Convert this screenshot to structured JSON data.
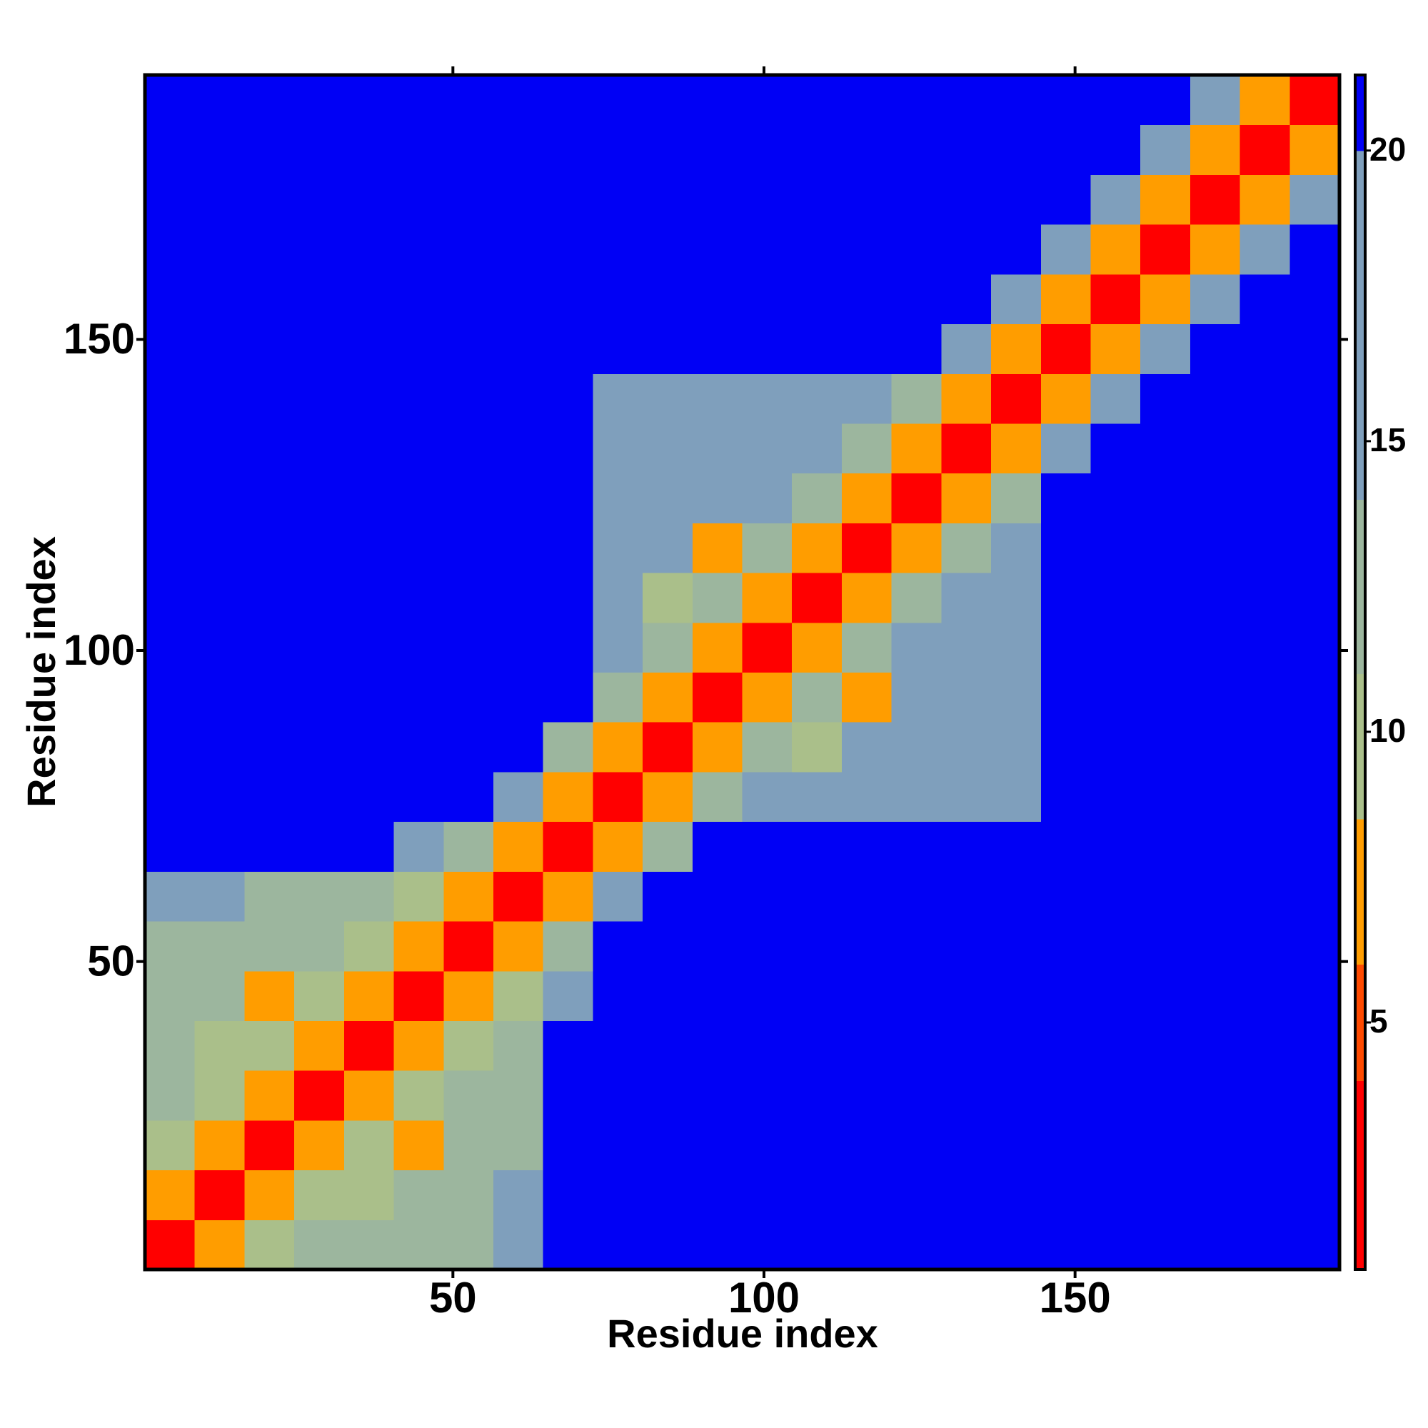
{
  "chart_data": {
    "type": "heatmap",
    "x_label": "Residue index",
    "y_label": "Residue index",
    "x": [
      4.5,
      12.5,
      20.5,
      28.5,
      36.5,
      44.5,
      52.5,
      60.5,
      68.5,
      76.5,
      84.5,
      92.5,
      100.5,
      108.5,
      116.5,
      124.5,
      132.5,
      140.5,
      148.5,
      156.5,
      164.5,
      172.5,
      180.5,
      188.5
    ],
    "y": [
      4.5,
      12.5,
      20.5,
      28.5,
      36.5,
      44.5,
      52.5,
      60.5,
      68.5,
      76.5,
      84.5,
      92.5,
      100.5,
      108.5,
      116.5,
      124.5,
      132.5,
      140.5,
      148.5,
      156.5,
      164.5,
      172.5,
      180.5,
      188.5
    ],
    "xlim": [
      0.5,
      192.5
    ],
    "ylim": [
      0.5,
      192.5
    ],
    "xticks": [
      50,
      100,
      150
    ],
    "yticks": [
      50,
      100,
      150
    ],
    "zlim": [
      0.75,
      21.3
    ],
    "zticks": [
      5,
      10,
      15,
      20
    ],
    "color_levels": [
      0.75,
      4,
      6,
      8.5,
      11,
      14,
      20,
      21.3
    ],
    "colors": [
      "#ff0000",
      "#ff4a00",
      "#ff9d00",
      "#aabf8a",
      "#9cb69e",
      "#7f9fbc",
      "#0000f5"
    ],
    "z": [
      [
        3,
        6,
        10,
        13,
        13,
        13,
        13,
        16,
        24,
        24,
        24,
        24,
        24,
        24,
        24,
        24,
        24,
        24,
        24,
        24,
        24,
        24,
        24,
        24
      ],
      [
        6,
        3,
        6,
        10,
        9,
        13,
        13,
        14,
        24,
        24,
        24,
        24,
        24,
        24,
        24,
        24,
        24,
        24,
        24,
        24,
        24,
        24,
        24,
        24
      ],
      [
        10,
        6,
        3,
        6,
        10,
        8,
        13,
        13,
        24,
        24,
        24,
        24,
        24,
        24,
        24,
        24,
        24,
        24,
        24,
        24,
        24,
        24,
        24,
        24
      ],
      [
        13,
        10,
        6,
        3,
        6,
        10,
        13,
        13,
        24,
        24,
        24,
        24,
        24,
        24,
        24,
        24,
        24,
        24,
        24,
        24,
        24,
        24,
        24,
        24
      ],
      [
        13,
        9,
        10,
        6,
        3,
        6,
        10,
        13,
        24,
        24,
        24,
        24,
        24,
        24,
        24,
        24,
        24,
        24,
        24,
        24,
        24,
        24,
        24,
        24
      ],
      [
        13,
        13,
        8,
        10,
        6,
        3,
        6,
        10,
        18,
        24,
        24,
        24,
        24,
        24,
        24,
        24,
        24,
        24,
        24,
        24,
        24,
        24,
        24,
        24
      ],
      [
        13,
        13,
        13,
        13,
        10,
        6,
        3,
        6,
        12,
        24,
        24,
        24,
        24,
        24,
        24,
        24,
        24,
        24,
        24,
        24,
        24,
        24,
        24,
        24
      ],
      [
        16,
        14,
        13,
        13,
        13,
        10,
        6,
        3,
        6,
        17,
        24,
        24,
        24,
        24,
        24,
        24,
        24,
        24,
        24,
        24,
        24,
        24,
        24,
        24
      ],
      [
        24,
        24,
        24,
        24,
        24,
        18,
        12,
        6,
        3,
        7,
        13,
        24,
        24,
        24,
        24,
        24,
        24,
        24,
        24,
        24,
        24,
        24,
        24,
        24
      ],
      [
        24,
        24,
        24,
        24,
        24,
        24,
        24,
        17,
        7,
        3,
        6,
        11,
        14,
        14,
        14,
        14,
        14,
        14,
        24,
        24,
        24,
        24,
        24,
        24
      ],
      [
        24,
        24,
        24,
        24,
        24,
        24,
        24,
        24,
        13,
        6,
        3,
        6,
        11,
        9,
        14,
        14,
        14,
        14,
        24,
        24,
        24,
        24,
        24,
        24
      ],
      [
        24,
        24,
        24,
        24,
        24,
        24,
        24,
        24,
        24,
        11,
        6,
        3,
        6,
        11,
        8,
        14,
        14,
        14,
        24,
        24,
        24,
        24,
        24,
        24
      ],
      [
        24,
        24,
        24,
        24,
        24,
        24,
        24,
        24,
        24,
        14,
        11,
        6,
        3,
        6,
        11,
        14,
        14,
        14,
        24,
        24,
        24,
        24,
        24,
        24
      ],
      [
        24,
        24,
        24,
        24,
        24,
        24,
        24,
        24,
        24,
        14,
        9,
        11,
        6,
        3,
        6,
        11,
        14,
        14,
        24,
        24,
        24,
        24,
        24,
        24
      ],
      [
        24,
        24,
        24,
        24,
        24,
        24,
        24,
        24,
        24,
        14,
        14,
        8,
        11,
        6,
        3,
        6,
        11,
        14,
        24,
        24,
        24,
        24,
        24,
        24
      ],
      [
        24,
        24,
        24,
        24,
        24,
        24,
        24,
        24,
        24,
        14,
        14,
        14,
        14,
        11,
        6,
        3,
        6,
        11,
        24,
        24,
        24,
        24,
        24,
        24
      ],
      [
        24,
        24,
        24,
        24,
        24,
        24,
        24,
        24,
        24,
        14,
        14,
        14,
        14,
        14,
        11,
        6,
        3,
        6,
        16,
        24,
        24,
        24,
        24,
        24
      ],
      [
        24,
        24,
        24,
        24,
        24,
        24,
        24,
        24,
        24,
        14,
        14,
        14,
        14,
        14,
        14,
        11,
        6,
        3,
        8,
        18,
        24,
        24,
        24,
        24
      ],
      [
        24,
        24,
        24,
        24,
        24,
        24,
        24,
        24,
        24,
        24,
        24,
        24,
        24,
        24,
        24,
        24,
        16,
        8,
        3,
        8,
        18,
        24,
        24,
        24
      ],
      [
        24,
        24,
        24,
        24,
        24,
        24,
        24,
        24,
        24,
        24,
        24,
        24,
        24,
        24,
        24,
        24,
        24,
        18,
        8,
        3,
        8,
        18,
        24,
        24
      ],
      [
        24,
        24,
        24,
        24,
        24,
        24,
        24,
        24,
        24,
        24,
        24,
        24,
        24,
        24,
        24,
        24,
        24,
        24,
        18,
        8,
        3,
        8,
        18,
        24
      ],
      [
        24,
        24,
        24,
        24,
        24,
        24,
        24,
        24,
        24,
        24,
        24,
        24,
        24,
        24,
        24,
        24,
        24,
        24,
        24,
        18,
        8,
        3,
        8,
        18
      ],
      [
        24,
        24,
        24,
        24,
        24,
        24,
        24,
        24,
        24,
        24,
        24,
        24,
        24,
        24,
        24,
        24,
        24,
        24,
        24,
        24,
        18,
        8,
        3,
        8
      ],
      [
        24,
        24,
        24,
        24,
        24,
        24,
        24,
        24,
        24,
        24,
        24,
        24,
        24,
        24,
        24,
        24,
        24,
        24,
        24,
        24,
        24,
        18,
        8,
        3
      ]
    ]
  }
}
